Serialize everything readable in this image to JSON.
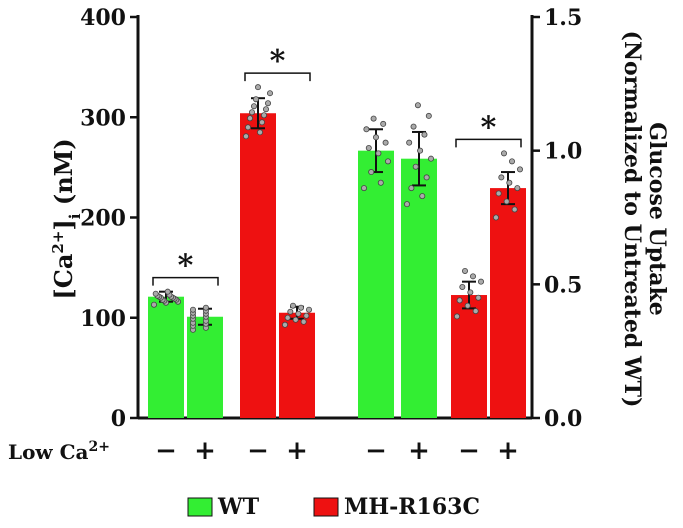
{
  "chart_data": {
    "type": "bar",
    "panels": [
      {
        "name": "calcium",
        "ylabel_main": "[Ca",
        "ylabel_sup": "2+",
        "ylabel_bracket": "]",
        "ylabel_sub": "i",
        "ylabel_unit": " (nM)",
        "ylim": [
          0,
          400
        ],
        "yticks": [
          0,
          100,
          200,
          300,
          400
        ],
        "bars": [
          {
            "genotype": "WT",
            "low_ca": "−",
            "value": 121,
            "err": 5,
            "points": [
              113,
              115,
              116,
              117,
              118,
              118,
              119,
              120,
              120,
              121,
              121,
              122,
              123,
              124,
              126
            ]
          },
          {
            "genotype": "WT",
            "low_ca": "+",
            "value": 101,
            "err": 8,
            "points": [
              88,
              90,
              92,
              94,
              95,
              97,
              99,
              101,
              102,
              104,
              105,
              107,
              108,
              110
            ]
          },
          {
            "genotype": "MH-R163C",
            "low_ca": "−",
            "value": 304,
            "err": 15,
            "points": [
              281,
              285,
              290,
              295,
              299,
              302,
              305,
              308,
              311,
              314,
              318,
              324,
              330
            ]
          },
          {
            "genotype": "MH-R163C",
            "low_ca": "+",
            "value": 105,
            "err": 6,
            "points": [
              93,
              96,
              98,
              100,
              102,
              104,
              106,
              108,
              110,
              112
            ]
          }
        ],
        "significance": [
          {
            "bars": [
              0,
              1
            ],
            "label": "*"
          },
          {
            "bars": [
              2,
              3
            ],
            "label": "*"
          }
        ]
      },
      {
        "name": "glucose",
        "ylabel_line1": "Glucose Uptake",
        "ylabel_line2": "(Normalized to Untreated WT)",
        "ylim": [
          0,
          1.5
        ],
        "yticks": [
          "0.0",
          "0.5",
          "1.0",
          "1.5"
        ],
        "bars": [
          {
            "genotype": "WT",
            "low_ca": "−",
            "value": 1.0,
            "err": 0.08,
            "points": [
              0.86,
              0.88,
              0.92,
              0.96,
              0.99,
              1.01,
              1.03,
              1.05,
              1.08,
              1.1,
              1.12
            ]
          },
          {
            "genotype": "WT",
            "low_ca": "+",
            "value": 0.97,
            "err": 0.1,
            "points": [
              0.8,
              0.83,
              0.86,
              0.9,
              0.94,
              0.97,
              1.0,
              1.03,
              1.06,
              1.09,
              1.13,
              1.17
            ]
          },
          {
            "genotype": "MH-R163C",
            "low_ca": "−",
            "value": 0.46,
            "err": 0.05,
            "points": [
              0.38,
              0.4,
              0.42,
              0.44,
              0.45,
              0.47,
              0.49,
              0.51,
              0.53,
              0.55
            ]
          },
          {
            "genotype": "MH-R163C",
            "low_ca": "+",
            "value": 0.86,
            "err": 0.06,
            "points": [
              0.75,
              0.78,
              0.81,
              0.84,
              0.86,
              0.88,
              0.9,
              0.93,
              0.96,
              0.99
            ]
          }
        ],
        "significance": [
          {
            "bars": [
              2,
              3
            ],
            "label": "*"
          }
        ]
      }
    ],
    "xrow_label_main": "Low Ca",
    "xrow_label_sup": "2+",
    "legend": [
      {
        "label": "WT",
        "color": "#33ee33"
      },
      {
        "label": "MH-R163C",
        "color": "#ee1111"
      }
    ],
    "legend_placement": "bottom-center",
    "grid": false
  }
}
